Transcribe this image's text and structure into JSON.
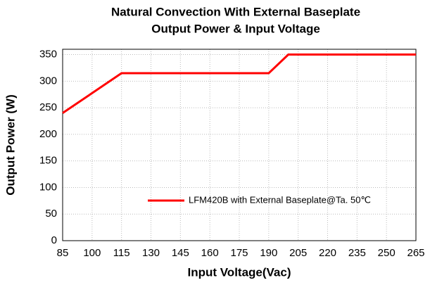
{
  "chart_data": {
    "type": "line",
    "title": "Natural Convection With External Baseplate",
    "subtitle": "Output Power & Input Voltage",
    "x_label": "Input Voltage(Vac)",
    "y_label": "Output Power (W)",
    "x": [
      85,
      115,
      190,
      200,
      265
    ],
    "series": [
      {
        "name": "LFM420B with External Baseplate@Ta. 50℃",
        "color": "#ff0000",
        "values": [
          240,
          315,
          315,
          350,
          350
        ]
      }
    ],
    "xlim": [
      85,
      265
    ],
    "xticks": [
      85,
      100,
      115,
      130,
      145,
      160,
      175,
      190,
      205,
      220,
      235,
      250,
      265
    ],
    "ylim": [
      0,
      360
    ],
    "yticks": [
      0,
      50,
      100,
      150,
      200,
      250,
      300,
      350
    ],
    "grid": true,
    "legend": "lower right"
  }
}
